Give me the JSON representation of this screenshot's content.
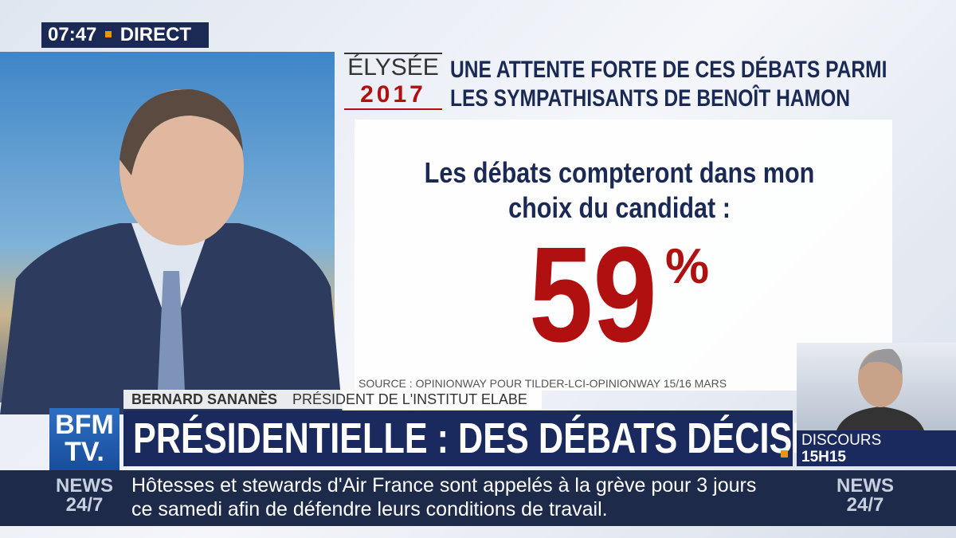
{
  "clock": {
    "time": "07:47",
    "status": "DIRECT"
  },
  "graphic": {
    "logo": {
      "line1": "ÉLYSÉE",
      "line2": "2017"
    },
    "headline": [
      "UNE ATTENTE FORTE DE CES DÉBATS PARMI",
      "LES SYMPATHISANTS DE BENOÎT HAMON"
    ],
    "question": [
      "Les débats compteront dans mon",
      "choix du candidat :"
    ],
    "stat": {
      "value": 59,
      "unit": "%"
    },
    "source": "SOURCE : OPINIONWAY POUR TILDER-LCI-OPINIONWAY 15/16 MARS"
  },
  "speaker": {
    "name": "BERNARD SANANÈS",
    "role": "PRÉSIDENT DE L'INSTITUT ELABE"
  },
  "channel": {
    "line1": "BFM",
    "line2": "TV."
  },
  "banner": "PRÉSIDENTIELLE : DES DÉBATS DÉCISIFS",
  "next": {
    "label": "DISCOURS",
    "time": "15H15"
  },
  "ticker": {
    "brand_left": {
      "line1": "NEWS",
      "line2": "24/7"
    },
    "brand_right": {
      "line1": "NEWS",
      "line2": "24/7"
    },
    "lines": [
      "Hôtesses et stewards d'Air France sont appelés à la grève pour 3 jours",
      "ce samedi afin de défendre leurs conditions de travail."
    ]
  }
}
